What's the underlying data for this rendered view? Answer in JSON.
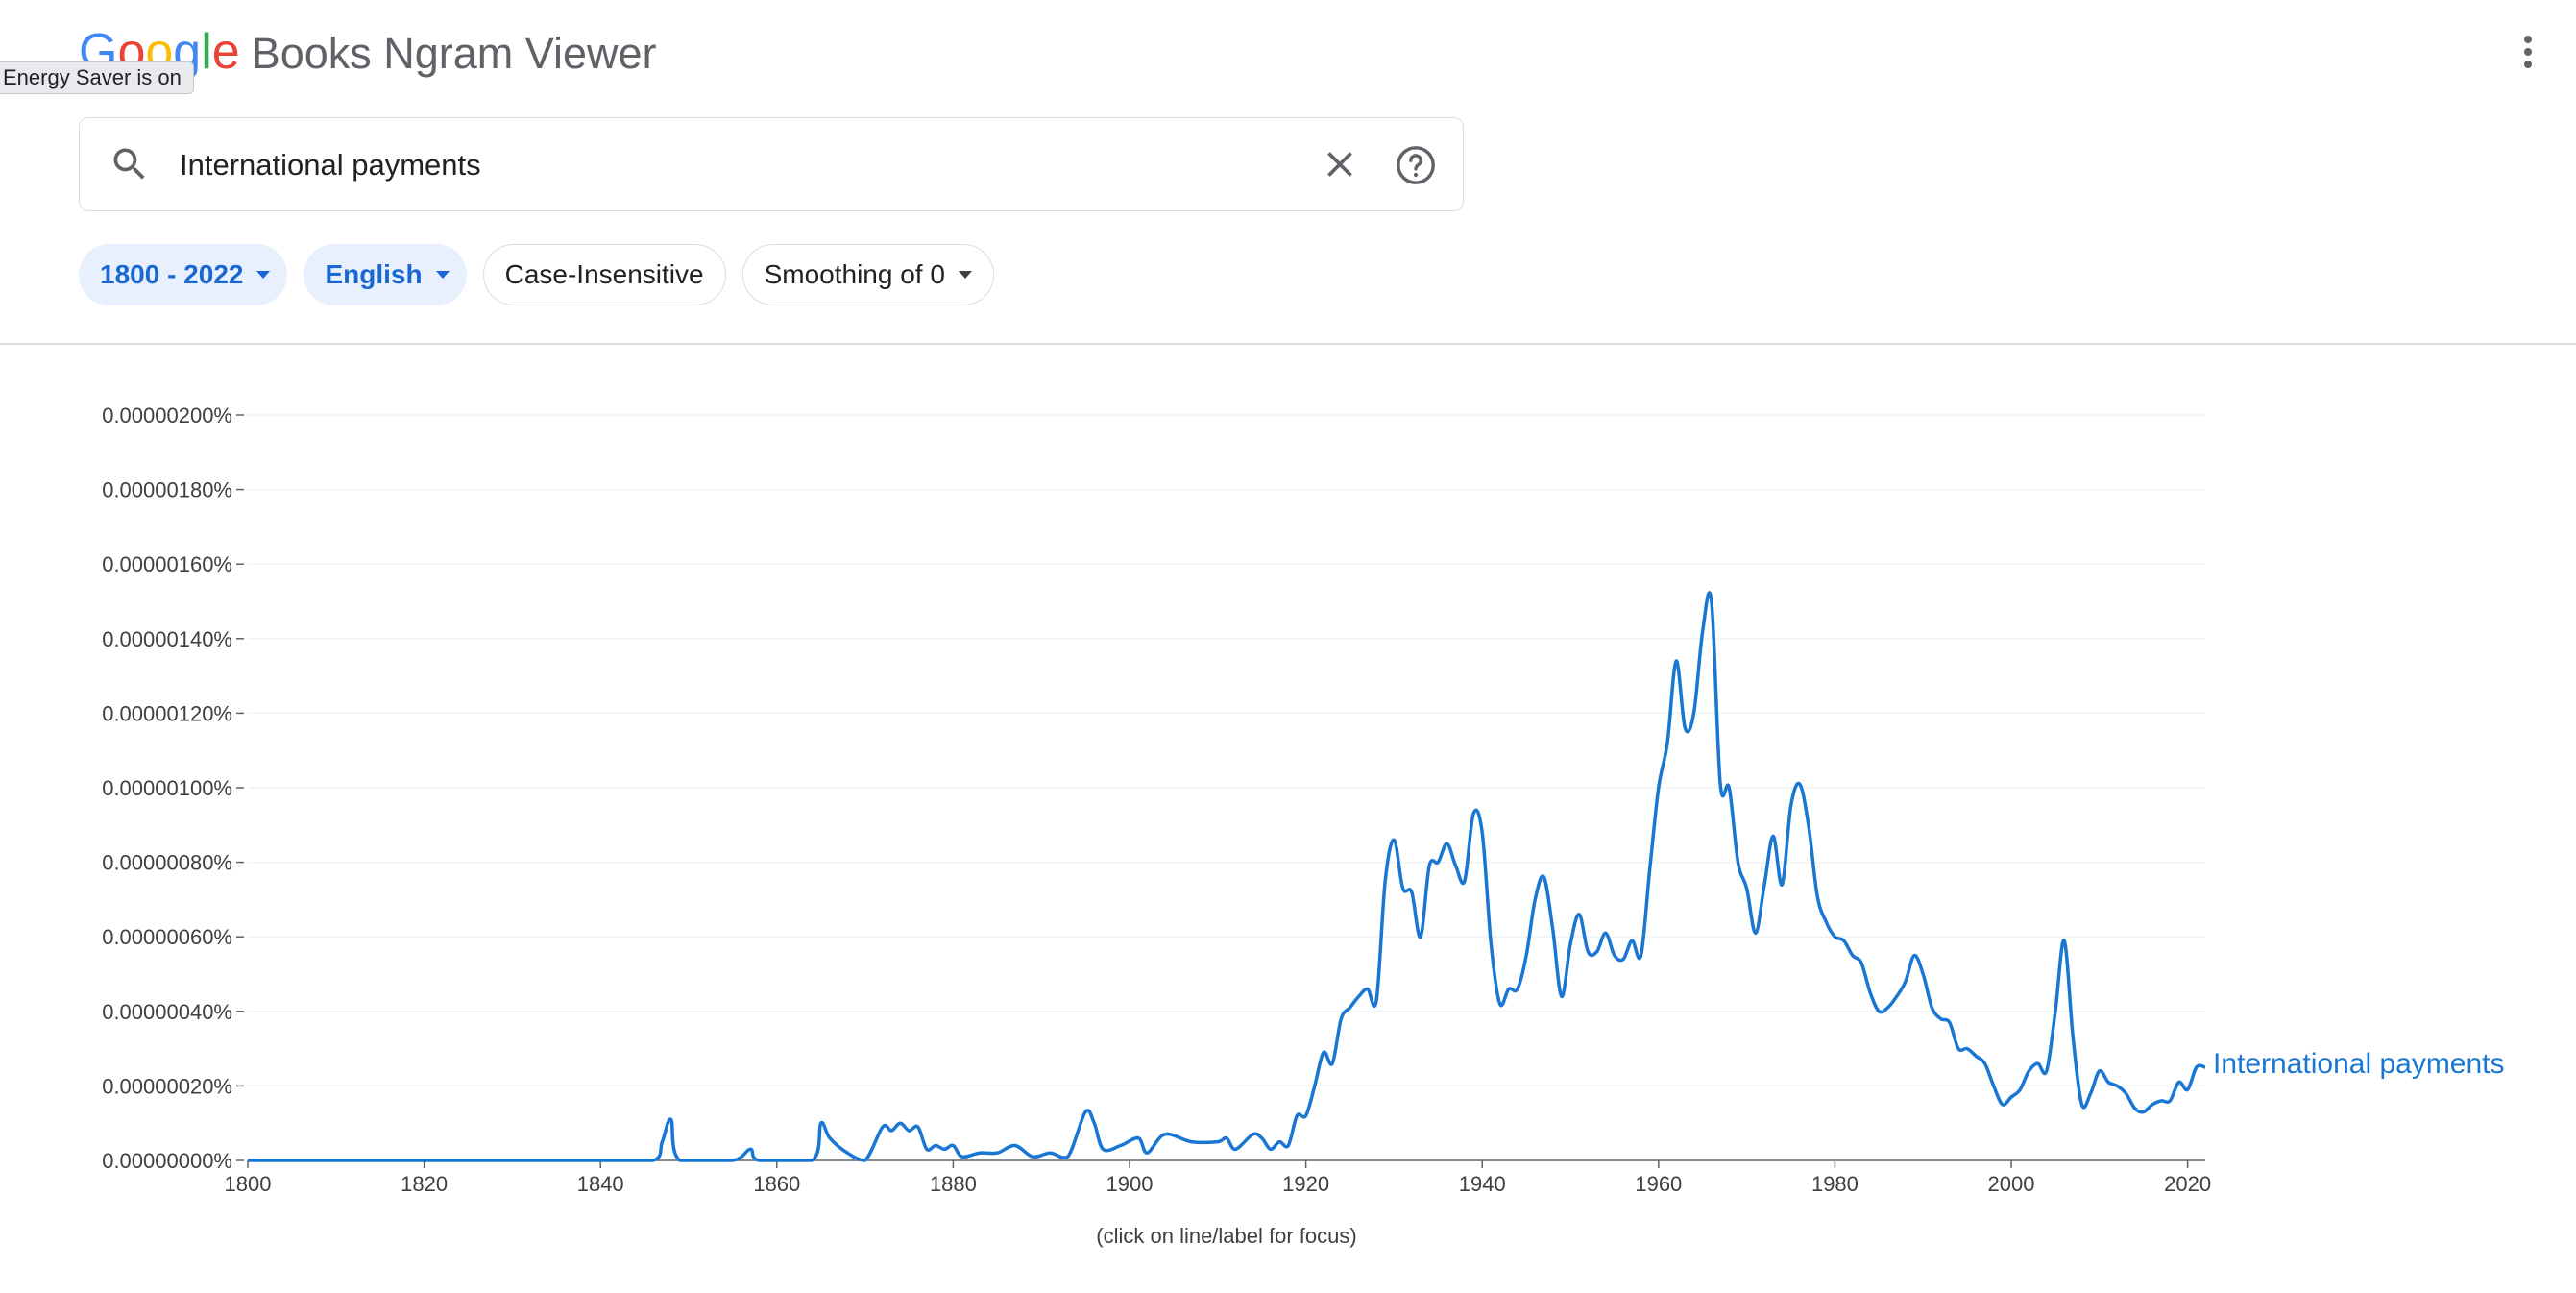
{
  "header": {
    "logo_letters": [
      {
        "ch": "G",
        "color": "#4285F4"
      },
      {
        "ch": "o",
        "color": "#EA4335"
      },
      {
        "ch": "o",
        "color": "#FBBC05"
      },
      {
        "ch": "g",
        "color": "#4285F4"
      },
      {
        "ch": "l",
        "color": "#34A853"
      },
      {
        "ch": "e",
        "color": "#EA4335"
      }
    ],
    "app_name": "Books Ngram Viewer",
    "more_icon": "more-vert-icon"
  },
  "tooltip": {
    "text": "Energy Saver is on"
  },
  "search": {
    "value": "International payments",
    "icons": [
      "search-icon",
      "close-icon",
      "help-icon"
    ]
  },
  "filters": {
    "year_range": "1800 - 2022",
    "language": "English",
    "case": "Case-Insensitive",
    "smoothing": "Smoothing of 0"
  },
  "colors": {
    "accent": "#1967d2",
    "series": "#1976d2",
    "chip_bg": "#e8f0fe"
  },
  "chart_data": {
    "type": "line",
    "xlabel": "",
    "ylabel": "",
    "xlim": [
      1800,
      2022
    ],
    "ylim": [
      0,
      2e-08
    ],
    "grid": true,
    "legend": "inline at line end",
    "x_ticks": [
      "1800",
      "1820",
      "1840",
      "1860",
      "1880",
      "1900",
      "1920",
      "1940",
      "1960",
      "1980",
      "2000",
      "2020"
    ],
    "y_ticks": [
      "0.00000000%",
      "0.00000020%",
      "0.00000040%",
      "0.00000060%",
      "0.00000080%",
      "0.00000100%",
      "0.00000120%",
      "0.00000140%",
      "0.00000160%",
      "0.00000180%",
      "0.00000200%"
    ],
    "series": [
      {
        "name": "International payments",
        "points": [
          [
            1800,
            0
          ],
          [
            1820,
            0
          ],
          [
            1840,
            0
          ],
          [
            1846,
            0
          ],
          [
            1847,
            5e-10
          ],
          [
            1848,
            1.1e-09
          ],
          [
            1849,
            0
          ],
          [
            1855,
            0
          ],
          [
            1857,
            3e-10
          ],
          [
            1858,
            0
          ],
          [
            1864,
            0
          ],
          [
            1865,
            1e-09
          ],
          [
            1866,
            6e-10
          ],
          [
            1868,
            2e-10
          ],
          [
            1870,
            0
          ],
          [
            1872,
            9e-10
          ],
          [
            1873,
            8e-10
          ],
          [
            1874,
            1e-09
          ],
          [
            1875,
            8e-10
          ],
          [
            1876,
            9e-10
          ],
          [
            1877,
            3e-10
          ],
          [
            1878,
            4e-10
          ],
          [
            1879,
            3e-10
          ],
          [
            1880,
            4e-10
          ],
          [
            1881,
            1e-10
          ],
          [
            1883,
            2e-10
          ],
          [
            1885,
            2e-10
          ],
          [
            1887,
            4e-10
          ],
          [
            1889,
            1e-10
          ],
          [
            1891,
            2e-10
          ],
          [
            1893,
            1e-10
          ],
          [
            1895,
            1.3e-09
          ],
          [
            1896,
            1e-09
          ],
          [
            1897,
            3e-10
          ],
          [
            1899,
            4e-10
          ],
          [
            1901,
            6e-10
          ],
          [
            1902,
            2e-10
          ],
          [
            1904,
            7e-10
          ],
          [
            1907,
            5e-10
          ],
          [
            1910,
            5e-10
          ],
          [
            1911,
            6e-10
          ],
          [
            1912,
            3e-10
          ],
          [
            1914,
            7e-10
          ],
          [
            1915,
            6e-10
          ],
          [
            1916,
            3e-10
          ],
          [
            1917,
            5e-10
          ],
          [
            1918,
            4e-10
          ],
          [
            1919,
            1.2e-09
          ],
          [
            1920,
            1.2e-09
          ],
          [
            1921,
            2e-09
          ],
          [
            1922,
            2.9e-09
          ],
          [
            1923,
            2.6e-09
          ],
          [
            1924,
            3.8e-09
          ],
          [
            1925,
            4.1e-09
          ],
          [
            1926,
            4.4e-09
          ],
          [
            1927,
            4.6e-09
          ],
          [
            1928,
            4.3e-09
          ],
          [
            1929,
            7.5e-09
          ],
          [
            1930,
            8.6e-09
          ],
          [
            1931,
            7.3e-09
          ],
          [
            1932,
            7.2e-09
          ],
          [
            1933,
            6e-09
          ],
          [
            1934,
            7.9e-09
          ],
          [
            1935,
            8e-09
          ],
          [
            1936,
            8.5e-09
          ],
          [
            1937,
            7.9e-09
          ],
          [
            1938,
            7.5e-09
          ],
          [
            1939,
            9.3e-09
          ],
          [
            1940,
            8.8e-09
          ],
          [
            1941,
            5.8e-09
          ],
          [
            1942,
            4.2e-09
          ],
          [
            1943,
            4.6e-09
          ],
          [
            1944,
            4.6e-09
          ],
          [
            1945,
            5.5e-09
          ],
          [
            1946,
            7e-09
          ],
          [
            1947,
            7.6e-09
          ],
          [
            1948,
            6.2e-09
          ],
          [
            1949,
            4.4e-09
          ],
          [
            1950,
            5.8e-09
          ],
          [
            1951,
            6.6e-09
          ],
          [
            1952,
            5.6e-09
          ],
          [
            1953,
            5.6e-09
          ],
          [
            1954,
            6.1e-09
          ],
          [
            1955,
            5.5e-09
          ],
          [
            1956,
            5.4e-09
          ],
          [
            1957,
            5.9e-09
          ],
          [
            1958,
            5.5e-09
          ],
          [
            1959,
            7.8e-09
          ],
          [
            1960,
            1e-08
          ],
          [
            1961,
            1.12e-08
          ],
          [
            1962,
            1.34e-08
          ],
          [
            1963,
            1.16e-08
          ],
          [
            1964,
            1.2e-08
          ],
          [
            1965,
            1.42e-08
          ],
          [
            1966,
            1.5e-08
          ],
          [
            1967,
            1.01e-08
          ],
          [
            1968,
            1e-08
          ],
          [
            1969,
            8e-09
          ],
          [
            1970,
            7.3e-09
          ],
          [
            1971,
            6.1e-09
          ],
          [
            1972,
            7.4e-09
          ],
          [
            1973,
            8.7e-09
          ],
          [
            1974,
            7.4e-09
          ],
          [
            1975,
            9.5e-09
          ],
          [
            1976,
            1.01e-08
          ],
          [
            1977,
            9e-09
          ],
          [
            1978,
            7.1e-09
          ],
          [
            1979,
            6.4e-09
          ],
          [
            1980,
            6e-09
          ],
          [
            1981,
            5.9e-09
          ],
          [
            1982,
            5.5e-09
          ],
          [
            1983,
            5.3e-09
          ],
          [
            1984,
            4.5e-09
          ],
          [
            1985,
            4e-09
          ],
          [
            1986,
            4.1e-09
          ],
          [
            1987,
            4.4e-09
          ],
          [
            1988,
            4.8e-09
          ],
          [
            1989,
            5.5e-09
          ],
          [
            1990,
            5e-09
          ],
          [
            1991,
            4.1e-09
          ],
          [
            1992,
            3.8e-09
          ],
          [
            1993,
            3.7e-09
          ],
          [
            1994,
            3e-09
          ],
          [
            1995,
            3e-09
          ],
          [
            1996,
            2.8e-09
          ],
          [
            1997,
            2.6e-09
          ],
          [
            1998,
            2e-09
          ],
          [
            1999,
            1.5e-09
          ],
          [
            2000,
            1.7e-09
          ],
          [
            2001,
            1.9e-09
          ],
          [
            2002,
            2.4e-09
          ],
          [
            2003,
            2.6e-09
          ],
          [
            2004,
            2.4e-09
          ],
          [
            2005,
            4e-09
          ],
          [
            2006,
            5.9e-09
          ],
          [
            2007,
            3.3e-09
          ],
          [
            2008,
            1.5e-09
          ],
          [
            2009,
            1.8e-09
          ],
          [
            2010,
            2.4e-09
          ],
          [
            2011,
            2.1e-09
          ],
          [
            2012,
            2e-09
          ],
          [
            2013,
            1.8e-09
          ],
          [
            2014,
            1.4e-09
          ],
          [
            2015,
            1.3e-09
          ],
          [
            2016,
            1.5e-09
          ],
          [
            2017,
            1.6e-09
          ],
          [
            2018,
            1.6e-09
          ],
          [
            2019,
            2.1e-09
          ],
          [
            2020,
            1.9e-09
          ],
          [
            2021,
            2.5e-09
          ],
          [
            2022,
            2.5e-09
          ]
        ]
      }
    ]
  },
  "footer": {
    "hint": "(click on line/label for focus)"
  }
}
